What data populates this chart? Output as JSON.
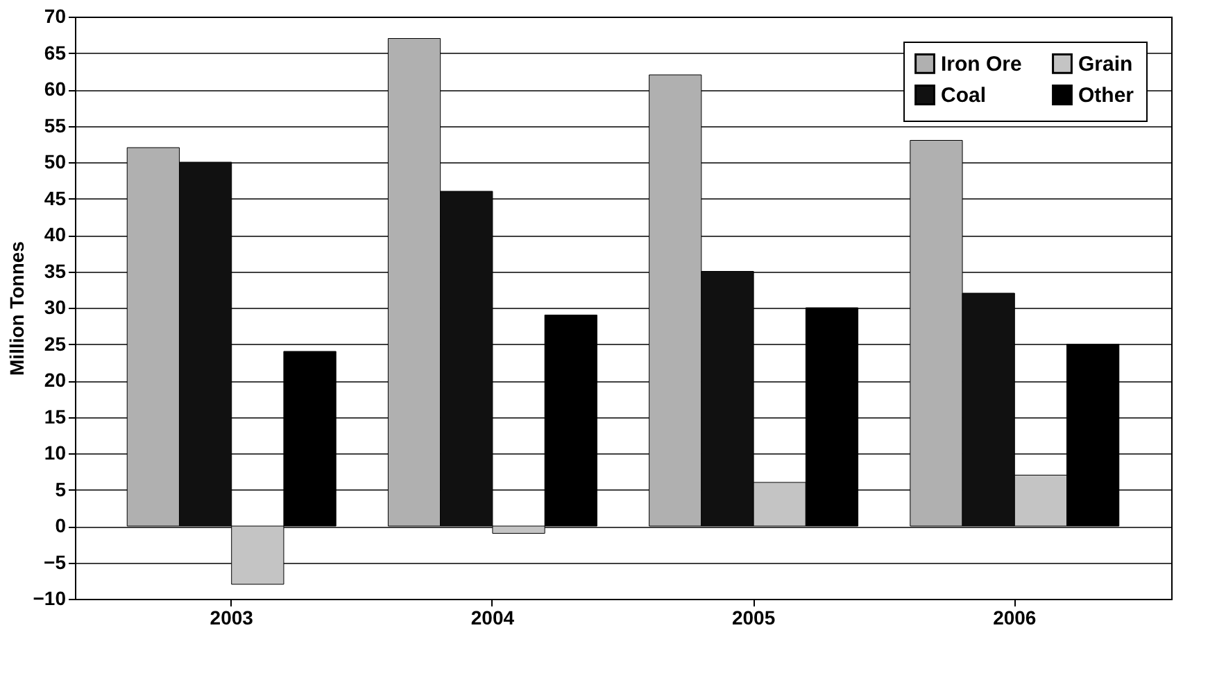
{
  "chart_data": {
    "type": "bar",
    "ylabel": "Million Tonnes",
    "categories": [
      "2003",
      "2004",
      "2005",
      "2006"
    ],
    "series": [
      {
        "name": "Iron Ore",
        "color": "#b0b0b0",
        "values": [
          52,
          67,
          62,
          53
        ]
      },
      {
        "name": "Coal",
        "color": "#111111",
        "values": [
          50,
          46,
          35,
          32
        ]
      },
      {
        "name": "Grain",
        "color": "#c4c4c4",
        "values": [
          -8,
          -1,
          6,
          7
        ]
      },
      {
        "name": "Other",
        "color": "#000000",
        "values": [
          24,
          29,
          30,
          25
        ]
      }
    ],
    "ylim": [
      -10,
      70
    ],
    "yticks": [
      -10,
      -5,
      0,
      5,
      10,
      15,
      20,
      25,
      30,
      35,
      40,
      45,
      50,
      55,
      60,
      65,
      70
    ],
    "grid": "y",
    "legend": "top right"
  }
}
